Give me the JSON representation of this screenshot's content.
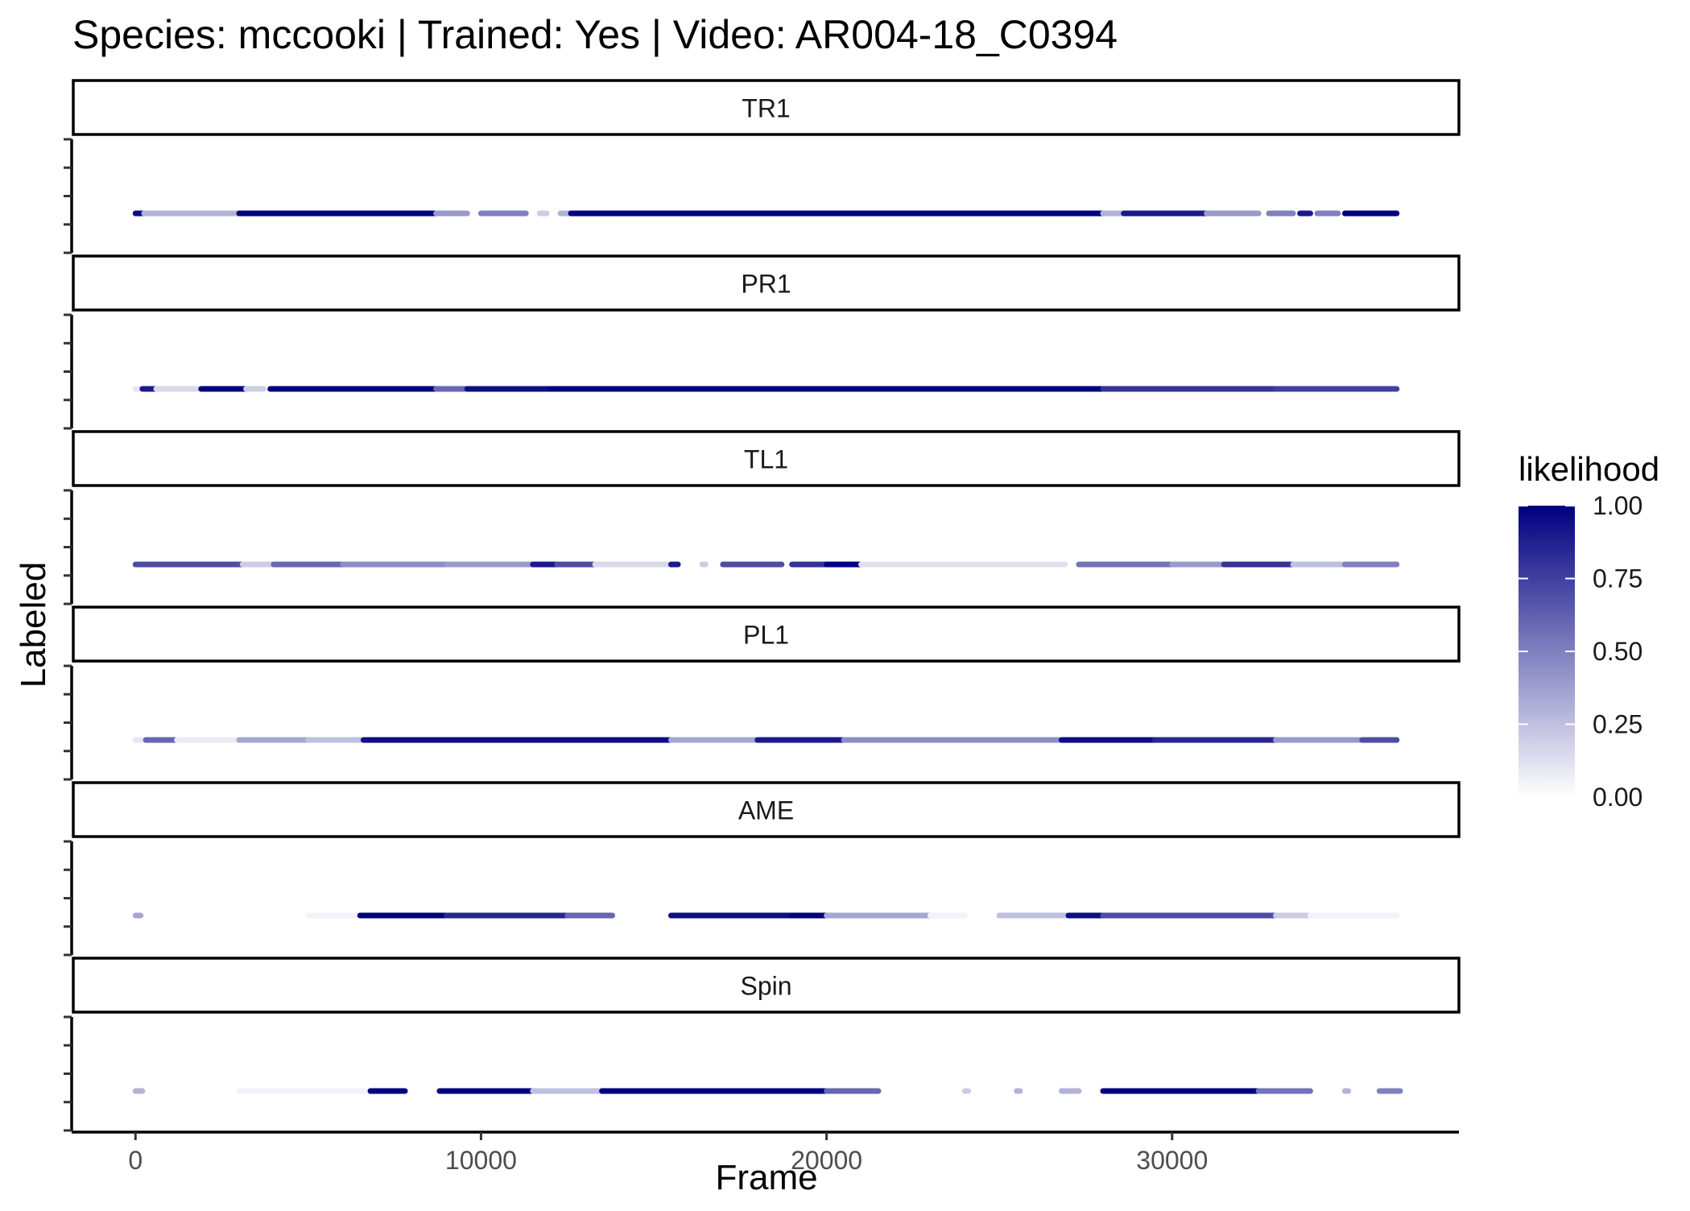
{
  "chart_data": {
    "type": "scatter",
    "title": "Species: mccooki | Trained: Yes | Video: AR004-18_C0394",
    "xlabel": "Frame",
    "ylabel": "Labeled",
    "xlim": [
      -1800,
      38300
    ],
    "xticks": [
      0,
      10000,
      20000,
      30000
    ],
    "xtick_labels": [
      "0",
      "10000",
      "20000",
      "30000"
    ],
    "legend": {
      "title": "likelihood",
      "placement": "right",
      "ticks": [
        "1.00",
        "0.75",
        "0.50",
        "0.25",
        "0.00"
      ],
      "tick_values": [
        1.0,
        0.75,
        0.5,
        0.25,
        0.0
      ],
      "color_low": "#ffffff",
      "color_high": "#000080"
    },
    "colors": {
      "low": "#ffffff",
      "high": "#000080"
    },
    "grid": false,
    "facets": [
      {
        "label": "TR1",
        "segments": [
          {
            "x": [
              0,
              200
            ],
            "likelihood": 0.95
          },
          {
            "x": [
              250,
              3000
            ],
            "likelihood": 0.3
          },
          {
            "x": [
              3000,
              8700
            ],
            "likelihood": 1.0
          },
          {
            "x": [
              8700,
              9600
            ],
            "likelihood": 0.4
          },
          {
            "x": [
              10000,
              11300
            ],
            "likelihood": 0.5
          },
          {
            "x": [
              11700,
              11900
            ],
            "likelihood": 0.2
          },
          {
            "x": [
              12300,
              12600
            ],
            "likelihood": 0.3
          },
          {
            "x": [
              12600,
              28000
            ],
            "likelihood": 1.0
          },
          {
            "x": [
              28000,
              28600
            ],
            "likelihood": 0.3
          },
          {
            "x": [
              28600,
              31000
            ],
            "likelihood": 0.9
          },
          {
            "x": [
              31000,
              32500
            ],
            "likelihood": 0.4
          },
          {
            "x": [
              32800,
              33500
            ],
            "likelihood": 0.5
          },
          {
            "x": [
              33700,
              34000
            ],
            "likelihood": 0.9
          },
          {
            "x": [
              34200,
              34800
            ],
            "likelihood": 0.5
          },
          {
            "x": [
              35000,
              36500
            ],
            "likelihood": 1.0
          }
        ]
      },
      {
        "label": "PR1",
        "segments": [
          {
            "x": [
              0,
              200
            ],
            "likelihood": 0.1
          },
          {
            "x": [
              200,
              600
            ],
            "likelihood": 0.9
          },
          {
            "x": [
              600,
              1800
            ],
            "likelihood": 0.15
          },
          {
            "x": [
              1900,
              3200
            ],
            "likelihood": 1.0
          },
          {
            "x": [
              3200,
              3700
            ],
            "likelihood": 0.2
          },
          {
            "x": [
              3900,
              8700
            ],
            "likelihood": 1.0
          },
          {
            "x": [
              8700,
              9600
            ],
            "likelihood": 0.6
          },
          {
            "x": [
              9600,
              12000
            ],
            "likelihood": 0.95
          },
          {
            "x": [
              12000,
              28000
            ],
            "likelihood": 1.0
          },
          {
            "x": [
              28000,
              33000
            ],
            "likelihood": 0.8
          },
          {
            "x": [
              33000,
              36500
            ],
            "likelihood": 0.75
          }
        ]
      },
      {
        "label": "TL1",
        "segments": [
          {
            "x": [
              0,
              3100
            ],
            "likelihood": 0.7
          },
          {
            "x": [
              3100,
              4000
            ],
            "likelihood": 0.2
          },
          {
            "x": [
              4000,
              6000
            ],
            "likelihood": 0.6
          },
          {
            "x": [
              6000,
              9000
            ],
            "likelihood": 0.45
          },
          {
            "x": [
              9000,
              11500
            ],
            "likelihood": 0.4
          },
          {
            "x": [
              11500,
              12200
            ],
            "likelihood": 0.9
          },
          {
            "x": [
              12200,
              13300
            ],
            "likelihood": 0.7
          },
          {
            "x": [
              13300,
              15500
            ],
            "likelihood": 0.15
          },
          {
            "x": [
              15500,
              15700
            ],
            "likelihood": 0.9
          },
          {
            "x": [
              16400,
              16500
            ],
            "likelihood": 0.2
          },
          {
            "x": [
              17000,
              18700
            ],
            "likelihood": 0.7
          },
          {
            "x": [
              19000,
              20000
            ],
            "likelihood": 0.8
          },
          {
            "x": [
              20000,
              21000
            ],
            "likelihood": 1.0
          },
          {
            "x": [
              21000,
              26900
            ],
            "likelihood": 0.12
          },
          {
            "x": [
              27300,
              30000
            ],
            "likelihood": 0.55
          },
          {
            "x": [
              30000,
              31500
            ],
            "likelihood": 0.4
          },
          {
            "x": [
              31500,
              33500
            ],
            "likelihood": 0.8
          },
          {
            "x": [
              33500,
              35000
            ],
            "likelihood": 0.25
          },
          {
            "x": [
              35000,
              36500
            ],
            "likelihood": 0.5
          }
        ]
      },
      {
        "label": "PL1",
        "segments": [
          {
            "x": [
              0,
              300
            ],
            "likelihood": 0.1
          },
          {
            "x": [
              300,
              1200
            ],
            "likelihood": 0.6
          },
          {
            "x": [
              1200,
              3000
            ],
            "likelihood": 0.08
          },
          {
            "x": [
              3000,
              5000
            ],
            "likelihood": 0.35
          },
          {
            "x": [
              5000,
              6600
            ],
            "likelihood": 0.25
          },
          {
            "x": [
              6600,
              15500
            ],
            "likelihood": 0.95
          },
          {
            "x": [
              15500,
              18000
            ],
            "likelihood": 0.35
          },
          {
            "x": [
              18000,
              20500
            ],
            "likelihood": 0.9
          },
          {
            "x": [
              20500,
              26800
            ],
            "likelihood": 0.45
          },
          {
            "x": [
              26800,
              29500
            ],
            "likelihood": 0.95
          },
          {
            "x": [
              29500,
              33000
            ],
            "likelihood": 0.85
          },
          {
            "x": [
              33000,
              35500
            ],
            "likelihood": 0.4
          },
          {
            "x": [
              35500,
              36500
            ],
            "likelihood": 0.7
          }
        ]
      },
      {
        "label": "AME",
        "segments": [
          {
            "x": [
              0,
              150
            ],
            "likelihood": 0.35
          },
          {
            "x": [
              5000,
              6500
            ],
            "likelihood": 0.05
          },
          {
            "x": [
              6500,
              9000
            ],
            "likelihood": 1.0
          },
          {
            "x": [
              9000,
              12500
            ],
            "likelihood": 0.85
          },
          {
            "x": [
              12500,
              13800
            ],
            "likelihood": 0.6
          },
          {
            "x": [
              15500,
              19000
            ],
            "likelihood": 0.95
          },
          {
            "x": [
              19000,
              20000
            ],
            "likelihood": 1.0
          },
          {
            "x": [
              20000,
              23000
            ],
            "likelihood": 0.35
          },
          {
            "x": [
              23000,
              24000
            ],
            "likelihood": 0.05
          },
          {
            "x": [
              25000,
              27000
            ],
            "likelihood": 0.25
          },
          {
            "x": [
              27000,
              28000
            ],
            "likelihood": 0.95
          },
          {
            "x": [
              28000,
              33000
            ],
            "likelihood": 0.7
          },
          {
            "x": [
              33000,
              34000
            ],
            "likelihood": 0.2
          },
          {
            "x": [
              34000,
              36500
            ],
            "likelihood": 0.05
          }
        ]
      },
      {
        "label": "Spin",
        "segments": [
          {
            "x": [
              0,
              200
            ],
            "likelihood": 0.3
          },
          {
            "x": [
              3000,
              6800
            ],
            "likelihood": 0.05
          },
          {
            "x": [
              6800,
              7800
            ],
            "likelihood": 1.0
          },
          {
            "x": [
              8800,
              11500
            ],
            "likelihood": 1.0
          },
          {
            "x": [
              11500,
              13500
            ],
            "likelihood": 0.25
          },
          {
            "x": [
              13500,
              20000
            ],
            "likelihood": 1.0
          },
          {
            "x": [
              20000,
              21500
            ],
            "likelihood": 0.6
          },
          {
            "x": [
              24000,
              24100
            ],
            "likelihood": 0.2
          },
          {
            "x": [
              25500,
              25600
            ],
            "likelihood": 0.3
          },
          {
            "x": [
              26800,
              27300
            ],
            "likelihood": 0.3
          },
          {
            "x": [
              28000,
              32500
            ],
            "likelihood": 1.0
          },
          {
            "x": [
              32500,
              34000
            ],
            "likelihood": 0.55
          },
          {
            "x": [
              35000,
              35100
            ],
            "likelihood": 0.3
          },
          {
            "x": [
              36000,
              36600
            ],
            "likelihood": 0.5
          }
        ]
      }
    ]
  }
}
